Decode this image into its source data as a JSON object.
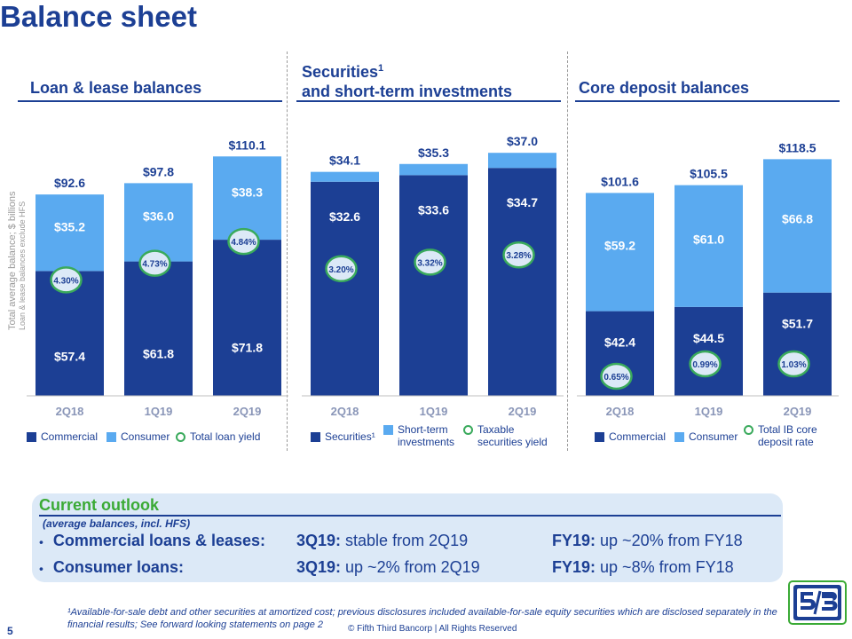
{
  "page": {
    "title": "Balance sheet",
    "page_number": "5",
    "copyright": "© Fifth Third Bancorp | All Rights Reserved",
    "footnote": "¹Available-for-sale debt and other securities at amortized cost; previous disclosures included available-for-sale equity securities which are disclosed separately in the financial results; See forward looking statements on page 2",
    "y_axis_label_line1": "Total average balance; $ billions",
    "y_axis_label_line2": "Loan & lease balances exclude HFS"
  },
  "colors": {
    "dark_blue": "#1c3f94",
    "light_blue": "#5aaaf0",
    "green": "#3aaa5c",
    "text": "#1c3f94"
  },
  "sections": [
    {
      "title_line1": "Loan & lease balances",
      "title_line2": ""
    },
    {
      "title_line1": "Securities",
      "title_sup": "1",
      "title_line2": "and short-term investments"
    },
    {
      "title_line1": "Core deposit balances",
      "title_line2": ""
    }
  ],
  "chart_data": [
    {
      "type": "bar",
      "stacked": true,
      "categories": [
        "2Q18",
        "1Q19",
        "2Q19"
      ],
      "series": [
        {
          "name": "Commercial",
          "color": "#1c3f94",
          "values": [
            57.4,
            61.8,
            71.8
          ],
          "labels": [
            "$57.4",
            "$61.8",
            "$71.8"
          ]
        },
        {
          "name": "Consumer",
          "color": "#5aaaf0",
          "values": [
            35.2,
            36.0,
            38.3
          ],
          "labels": [
            "$35.2",
            "$36.0",
            "$38.3"
          ]
        }
      ],
      "totals": [
        "$92.6",
        "$97.8",
        "$110.1"
      ],
      "rate": {
        "name": "Total loan yield",
        "values": [
          "4.30%",
          "4.73%",
          "4.84%"
        ]
      }
    },
    {
      "type": "bar",
      "stacked": true,
      "categories": [
        "2Q18",
        "1Q19",
        "2Q19"
      ],
      "series": [
        {
          "name": "Securities¹",
          "color": "#1c3f94",
          "values": [
            32.6,
            33.6,
            34.7
          ],
          "labels": [
            "$32.6",
            "$33.6",
            "$34.7"
          ]
        },
        {
          "name": "Short-term investments",
          "color": "#5aaaf0",
          "values": [
            1.5,
            1.7,
            2.3
          ],
          "labels": [
            "",
            "",
            ""
          ]
        }
      ],
      "totals": [
        "$34.1",
        "$35.3",
        "$37.0"
      ],
      "rate": {
        "name": "Taxable securities yield",
        "values": [
          "3.20%",
          "3.32%",
          "3.28%"
        ]
      }
    },
    {
      "type": "bar",
      "stacked": true,
      "categories": [
        "2Q18",
        "1Q19",
        "2Q19"
      ],
      "series": [
        {
          "name": "Commercial",
          "color": "#1c3f94",
          "values": [
            42.4,
            44.5,
            51.7
          ],
          "labels": [
            "$42.4",
            "$44.5",
            "$51.7"
          ]
        },
        {
          "name": "Consumer",
          "color": "#5aaaf0",
          "values": [
            59.2,
            61.0,
            66.8
          ],
          "labels": [
            "$59.2",
            "$61.0",
            "$66.8"
          ]
        }
      ],
      "totals": [
        "$101.6",
        "$105.5",
        "$118.5"
      ],
      "rate": {
        "name": "Total IB core deposit rate",
        "values": [
          "0.65%",
          "0.99%",
          "1.03%"
        ]
      }
    }
  ],
  "legends": [
    {
      "items": [
        "Commercial",
        "Consumer",
        "Total loan yield"
      ]
    },
    {
      "items": [
        "Securities¹",
        "Short-term investments",
        "Taxable securities yield"
      ]
    },
    {
      "items": [
        "Commercial",
        "Consumer",
        "Total IB core deposit rate"
      ]
    }
  ],
  "outlook": {
    "title": "Current outlook",
    "subtitle": "(average balances, incl. HFS)",
    "rows": [
      {
        "label": "Commercial loans & leases:",
        "q_bold": "3Q19:",
        "q_text": " stable from 2Q19",
        "fy_bold": "FY19:",
        "fy_text": " up ~20% from FY18"
      },
      {
        "label": "Consumer loans:",
        "q_bold": "3Q19:",
        "q_text": " up ~2% from 2Q19",
        "fy_bold": "FY19:",
        "fy_text": " up ~8% from FY18"
      }
    ]
  }
}
